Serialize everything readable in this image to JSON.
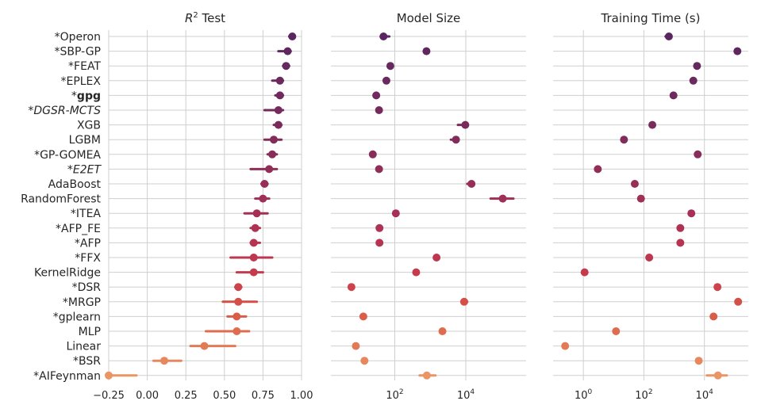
{
  "chart_data": {
    "type": "scatter",
    "methods": [
      {
        "name": "*Operon"
      },
      {
        "name": "*SBP-GP"
      },
      {
        "name": "*FEAT"
      },
      {
        "name": "*EPLEX"
      },
      {
        "name": "*gpg",
        "prefix": "*",
        "core": "gpg",
        "style": "bold"
      },
      {
        "name": "*DGSR-MCTS",
        "prefix": "*",
        "core": "DGSR-MCTS",
        "style": "italic"
      },
      {
        "name": "XGB"
      },
      {
        "name": "LGBM"
      },
      {
        "name": "*GP-GOMEA"
      },
      {
        "name": "*E2ET",
        "prefix": "*",
        "core": "E2ET",
        "style": "italic"
      },
      {
        "name": "AdaBoost"
      },
      {
        "name": "RandomForest"
      },
      {
        "name": "*ITEA"
      },
      {
        "name": "*AFP_FE"
      },
      {
        "name": "*AFP"
      },
      {
        "name": "*FFX"
      },
      {
        "name": "KernelRidge"
      },
      {
        "name": "*DSR"
      },
      {
        "name": "*MRGP"
      },
      {
        "name": "*gplearn"
      },
      {
        "name": "MLP"
      },
      {
        "name": "Linear"
      },
      {
        "name": "*BSR"
      },
      {
        "name": "*AIFeynman"
      }
    ],
    "colors": [
      "#5a2560",
      "#60275f",
      "#65285f",
      "#6b2a5e",
      "#70295e",
      "#752a5c",
      "#7b2b5b",
      "#822c5a",
      "#882d59",
      "#902e58",
      "#962e57",
      "#9e2f56",
      "#a63055",
      "#ae3253",
      "#b63452",
      "#bd3750",
      "#c43b4e",
      "#cc434c",
      "#d35049",
      "#d95e4a",
      "#de6c4f",
      "#e27a56",
      "#e6885d",
      "#e99565"
    ],
    "panels": [
      {
        "title_main": "R",
        "title_sup": "2",
        "title_rest": " Test",
        "scale": "linear",
        "xlim": [
          -0.25,
          1.0
        ],
        "ticks": [
          -0.25,
          0.0,
          0.25,
          0.5,
          0.75,
          1.0
        ],
        "tick_labels": [
          "−0.25",
          "0.00",
          "0.25",
          "0.50",
          "0.75",
          "1.00"
        ],
        "values": [
          0.94,
          0.91,
          0.9,
          0.86,
          0.86,
          0.85,
          0.85,
          0.82,
          0.81,
          0.79,
          0.76,
          0.75,
          0.71,
          0.7,
          0.69,
          0.69,
          0.69,
          0.59,
          0.59,
          0.58,
          0.58,
          0.37,
          0.11,
          -0.25
        ],
        "lo": [
          0.92,
          0.85,
          0.88,
          0.81,
          0.83,
          0.76,
          0.82,
          0.76,
          0.78,
          0.67,
          0.74,
          0.7,
          0.63,
          0.67,
          0.67,
          0.54,
          0.58,
          0.57,
          0.49,
          0.52,
          0.38,
          0.28,
          0.04,
          -0.25
        ],
        "hi": [
          0.95,
          0.93,
          0.92,
          0.88,
          0.88,
          0.88,
          0.87,
          0.87,
          0.84,
          0.84,
          0.78,
          0.79,
          0.78,
          0.73,
          0.73,
          0.81,
          0.75,
          0.61,
          0.71,
          0.64,
          0.66,
          0.57,
          0.22,
          -0.07
        ]
      },
      {
        "title_main": "Model Size",
        "scale": "log",
        "xlim_log10": [
          0.2,
          5.7
        ],
        "ticks_log10": [
          2,
          4
        ],
        "tick_labels": [
          "10",
          "10"
        ],
        "tick_sups": [
          "2",
          "4"
        ],
        "values": [
          48,
          780,
          75,
          58,
          30,
          36,
          9700,
          5300,
          24,
          36,
          14500,
          110000,
          107,
          37,
          37,
          1500,
          400,
          6,
          9000,
          13,
          2200,
          8,
          14,
          800
        ],
        "lo": [
          40,
          780,
          75,
          58,
          30,
          36,
          6000,
          3800,
          24,
          36,
          11000,
          50000,
          107,
          37,
          37,
          1500,
          400,
          6,
          7500,
          13,
          2200,
          8,
          14,
          500
        ],
        "hi": [
          70,
          780,
          75,
          58,
          30,
          36,
          11000,
          6000,
          24,
          36,
          16500,
          220000,
          107,
          37,
          37,
          1500,
          400,
          6,
          11000,
          13,
          2200,
          8,
          14,
          1400
        ]
      },
      {
        "title_main": "Training Time (s)",
        "scale": "log",
        "xlim_log10": [
          -1.0,
          5.45
        ],
        "ticks_log10": [
          0,
          2,
          4
        ],
        "tick_labels": [
          "10",
          "10",
          "10"
        ],
        "tick_sups": [
          "0",
          "2",
          "4"
        ],
        "values": [
          670,
          123000,
          5700,
          4300,
          950,
          null,
          190,
          22,
          6000,
          3,
          50,
          80,
          3700,
          1600,
          1600,
          150,
          1.1,
          27000,
          130000,
          20000,
          12,
          0.25,
          6500,
          28000
        ],
        "lo": [
          520,
          123000,
          5700,
          4300,
          950,
          null,
          190,
          22,
          6000,
          2.8,
          50,
          80,
          3700,
          1600,
          1600,
          150,
          1.1,
          27000,
          110000,
          20000,
          12,
          0.25,
          6500,
          12000
        ],
        "hi": [
          800,
          123000,
          5700,
          4300,
          950,
          null,
          190,
          22,
          6000,
          3.2,
          50,
          80,
          3700,
          1600,
          1600,
          150,
          1.1,
          27000,
          150000,
          20000,
          12,
          0.25,
          6500,
          55000
        ]
      }
    ]
  }
}
